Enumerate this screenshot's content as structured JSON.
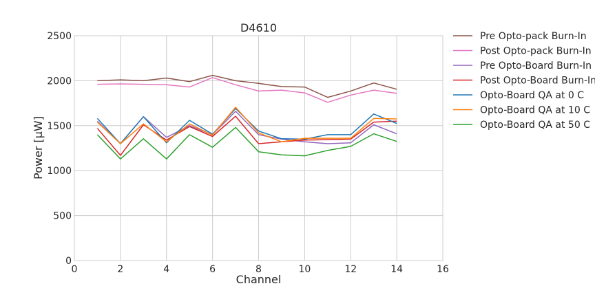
{
  "chart_data": {
    "type": "line",
    "title": "D4610",
    "xlabel": "Channel",
    "ylabel": "Power [μW]",
    "xlim": [
      0,
      16
    ],
    "ylim": [
      0,
      2500
    ],
    "xticks": [
      "0",
      "2",
      "4",
      "6",
      "8",
      "10",
      "12",
      "14",
      "16"
    ],
    "yticks": [
      "0",
      "500",
      "1000",
      "1500",
      "2000",
      "2500"
    ],
    "grid": true,
    "legend_position": "outside-right",
    "x": [
      1,
      2,
      3,
      4,
      5,
      6,
      7,
      8,
      9,
      10,
      11,
      12,
      13,
      14
    ],
    "series": [
      {
        "name": "Pre Opto-pack Burn-In",
        "color": "#8c564b",
        "values": [
          2000,
          2010,
          2000,
          2030,
          1990,
          2060,
          2000,
          1970,
          1935,
          1930,
          1815,
          1885,
          1975,
          1905
        ]
      },
      {
        "name": "Post Opto-pack Burn-In",
        "color": "#e377c2",
        "values": [
          1960,
          1965,
          1960,
          1955,
          1930,
          2035,
          1955,
          1885,
          1895,
          1865,
          1760,
          1840,
          1895,
          1860
        ]
      },
      {
        "name": "Pre Opto-Board Burn-In",
        "color": "#9467bd",
        "values": [
          1550,
          1300,
          1600,
          1370,
          1500,
          1400,
          1660,
          1400,
          1350,
          1320,
          1300,
          1310,
          1510,
          1410
        ]
      },
      {
        "name": "Post Opto-Board Burn-In",
        "color": "#d62728",
        "values": [
          1470,
          1170,
          1510,
          1340,
          1490,
          1380,
          1605,
          1300,
          1320,
          1340,
          1345,
          1350,
          1540,
          1550
        ]
      },
      {
        "name": "Opto-Board QA at 0 C",
        "color": "#1f77b4",
        "values": [
          1580,
          1300,
          1600,
          1310,
          1560,
          1405,
          1690,
          1440,
          1355,
          1350,
          1400,
          1400,
          1630,
          1525
        ]
      },
      {
        "name": "Opto-Board QA at 10 C",
        "color": "#ff7f0e",
        "values": [
          1540,
          1300,
          1520,
          1320,
          1520,
          1395,
          1705,
          1420,
          1320,
          1360,
          1360,
          1360,
          1580,
          1575
        ]
      },
      {
        "name": "Opto-Board QA at 50 C",
        "color": "#2ca02c",
        "values": [
          1400,
          1130,
          1355,
          1130,
          1400,
          1260,
          1480,
          1210,
          1175,
          1165,
          1225,
          1270,
          1410,
          1325
        ]
      }
    ]
  }
}
